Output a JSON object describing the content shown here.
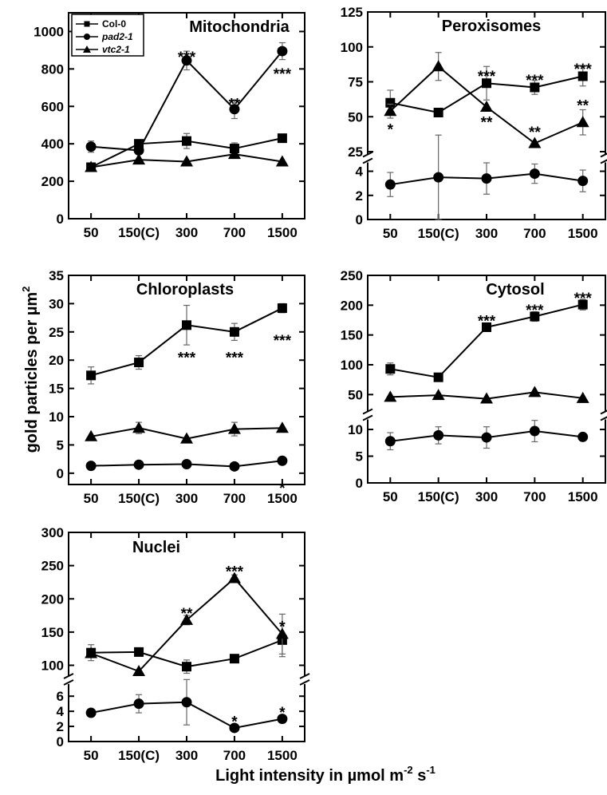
{
  "figure": {
    "ylabel_text": "gold particles per µm",
    "ylabel_sup": "2",
    "xlabel_parts": [
      "Light intensity in µmol m",
      "-2",
      " s",
      "-1"
    ]
  },
  "legend": [
    {
      "name": "Col-0",
      "marker": "square",
      "italic": false
    },
    {
      "name": "pad2-1",
      "marker": "circle",
      "italic": true
    },
    {
      "name": "vtc2-1",
      "marker": "triangle",
      "italic": true
    }
  ],
  "chart_data": [
    {
      "type": "line",
      "title": "Mitochondria",
      "categories": [
        "50",
        "150(C)",
        "300",
        "700",
        "1500"
      ],
      "ylim": [
        0,
        1100
      ],
      "yticks": [
        0,
        200,
        400,
        600,
        800,
        1000
      ],
      "broken": false,
      "series": [
        {
          "name": "Col-0",
          "marker": "square",
          "values": [
            275,
            400,
            415,
            375,
            430
          ],
          "errors": [
            0,
            0,
            40,
            30,
            0
          ]
        },
        {
          "name": "pad2-1",
          "marker": "circle",
          "values": [
            385,
            365,
            845,
            585,
            895
          ],
          "errors": [
            30,
            0,
            50,
            50,
            45
          ]
        },
        {
          "name": "vtc2-1",
          "marker": "triangle",
          "values": [
            275,
            315,
            305,
            345,
            305
          ],
          "errors": [
            0,
            0,
            0,
            0,
            0
          ]
        }
      ],
      "annotations": [
        {
          "category": "300",
          "value": 870,
          "text": "***"
        },
        {
          "category": "700",
          "value": 620,
          "text": "**"
        },
        {
          "category": "700",
          "value": 360,
          "text": "*"
        },
        {
          "category": "1500",
          "value": 780,
          "text": "***"
        }
      ]
    },
    {
      "type": "line",
      "title": "Peroxisomes",
      "categories": [
        "50",
        "150(C)",
        "300",
        "700",
        "1500"
      ],
      "broken": true,
      "upper": {
        "ylim": [
          25,
          125
        ],
        "yticks": [
          25,
          50,
          75,
          100,
          125
        ]
      },
      "lower": {
        "ylim": [
          0,
          4.5
        ],
        "yticks": [
          0,
          2,
          4
        ]
      },
      "series": [
        {
          "name": "Col-0",
          "marker": "square",
          "axis": "upper",
          "values": [
            60,
            53,
            74,
            71,
            79
          ],
          "errors": [
            9,
            3,
            12,
            5,
            7
          ]
        },
        {
          "name": "vtc2-1",
          "marker": "triangle",
          "axis": "upper",
          "values": [
            54,
            86,
            57,
            31,
            46
          ],
          "errors": [
            5,
            10,
            0,
            0,
            9
          ]
        },
        {
          "name": "pad2-1",
          "marker": "circle",
          "axis": "lower",
          "values": [
            2.9,
            3.5,
            3.4,
            3.8,
            3.2
          ],
          "errors": [
            1.0,
            3.5,
            1.3,
            0.8,
            0.9
          ]
        }
      ],
      "annotations": [
        {
          "category": "50",
          "axis": "upper",
          "value": 42,
          "text": "*"
        },
        {
          "category": "300",
          "axis": "upper",
          "value": 80,
          "text": "***"
        },
        {
          "category": "300",
          "axis": "upper",
          "value": 47,
          "text": "**"
        },
        {
          "category": "700",
          "axis": "upper",
          "value": 77,
          "text": "***"
        },
        {
          "category": "700",
          "axis": "upper",
          "value": 40,
          "text": "**"
        },
        {
          "category": "1500",
          "axis": "upper",
          "value": 85,
          "text": "***"
        },
        {
          "category": "1500",
          "axis": "upper",
          "value": 59,
          "text": "**"
        }
      ]
    },
    {
      "type": "line",
      "title": "Chloroplasts",
      "categories": [
        "50",
        "150(C)",
        "300",
        "700",
        "1500"
      ],
      "ylim": [
        -2,
        35
      ],
      "yticks": [
        0,
        5,
        10,
        15,
        20,
        25,
        30,
        35
      ],
      "broken": false,
      "series": [
        {
          "name": "Col-0",
          "marker": "square",
          "values": [
            17.3,
            19.6,
            26.2,
            25.0,
            29.2
          ],
          "errors": [
            1.5,
            1.2,
            3.5,
            1.5,
            0.8
          ]
        },
        {
          "name": "vtc2-1",
          "marker": "triangle",
          "values": [
            6.5,
            8.0,
            6.1,
            7.8,
            8.0
          ],
          "errors": [
            0,
            1.0,
            0,
            1.2,
            0
          ]
        },
        {
          "name": "pad2-1",
          "marker": "circle",
          "values": [
            1.3,
            1.5,
            1.6,
            1.2,
            2.2
          ],
          "errors": [
            0,
            0,
            0,
            0,
            0
          ]
        }
      ],
      "annotations": [
        {
          "category": "300",
          "value": 20.7,
          "text": "***"
        },
        {
          "category": "700",
          "value": 20.7,
          "text": "***"
        },
        {
          "category": "1500",
          "value": 23.7,
          "text": "***"
        },
        {
          "category": "1500",
          "value": -2.4,
          "text": "*"
        }
      ]
    },
    {
      "type": "line",
      "title": "Cytosol",
      "categories": [
        "50",
        "150(C)",
        "300",
        "700",
        "1500"
      ],
      "broken": true,
      "upper": {
        "ylim": [
          25,
          250
        ],
        "yticks": [
          50,
          100,
          150,
          200,
          250
        ]
      },
      "lower": {
        "ylim": [
          0,
          11.5
        ],
        "yticks": [
          0,
          5,
          10
        ]
      },
      "series": [
        {
          "name": "Col-0",
          "marker": "square",
          "axis": "upper",
          "values": [
            93,
            79,
            163,
            181,
            201
          ],
          "errors": [
            10,
            4,
            5,
            8,
            9
          ]
        },
        {
          "name": "vtc2-1",
          "marker": "triangle",
          "axis": "upper",
          "values": [
            46,
            49,
            43,
            54,
            44
          ],
          "errors": [
            0,
            0,
            0,
            0,
            0
          ]
        },
        {
          "name": "pad2-1",
          "marker": "circle",
          "axis": "lower",
          "values": [
            7.8,
            8.9,
            8.5,
            9.7,
            8.6
          ],
          "errors": [
            1.6,
            1.6,
            2.0,
            2.0,
            0.5
          ]
        }
      ],
      "annotations": [
        {
          "category": "300",
          "axis": "upper",
          "value": 176,
          "text": "***"
        },
        {
          "category": "700",
          "axis": "upper",
          "value": 194,
          "text": "***"
        },
        {
          "category": "1500",
          "axis": "upper",
          "value": 214,
          "text": "***"
        }
      ]
    },
    {
      "type": "line",
      "title": "Nuclei",
      "categories": [
        "50",
        "150(C)",
        "300",
        "700",
        "1500"
      ],
      "broken": true,
      "upper": {
        "ylim": [
          85,
          300
        ],
        "yticks": [
          100,
          150,
          200,
          250,
          300
        ]
      },
      "lower": {
        "ylim": [
          0,
          7.5
        ],
        "yticks": [
          0,
          2,
          4,
          6
        ]
      },
      "series": [
        {
          "name": "Col-0",
          "marker": "square",
          "axis": "upper",
          "values": [
            119,
            120,
            98,
            110,
            138
          ],
          "errors": [
            12,
            4,
            10,
            6,
            25
          ]
        },
        {
          "name": "vtc2-1",
          "marker": "triangle",
          "axis": "upper",
          "values": [
            118,
            91,
            168,
            231,
            147
          ],
          "errors": [
            0,
            0,
            7,
            5,
            30
          ]
        },
        {
          "name": "pad2-1",
          "marker": "circle",
          "axis": "lower",
          "values": [
            3.8,
            5.0,
            5.2,
            1.8,
            3.0
          ],
          "errors": [
            0,
            1.2,
            3.0,
            0,
            0
          ]
        }
      ],
      "annotations": [
        {
          "category": "300",
          "axis": "upper",
          "value": 180,
          "text": "**"
        },
        {
          "category": "700",
          "axis": "upper",
          "value": 243,
          "text": "***"
        },
        {
          "category": "700",
          "axis": "lower",
          "value": 2.8,
          "text": "*"
        },
        {
          "category": "1500",
          "axis": "upper",
          "value": 160,
          "text": "*"
        },
        {
          "category": "1500",
          "axis": "lower",
          "value": 4.0,
          "text": "*"
        }
      ]
    }
  ]
}
